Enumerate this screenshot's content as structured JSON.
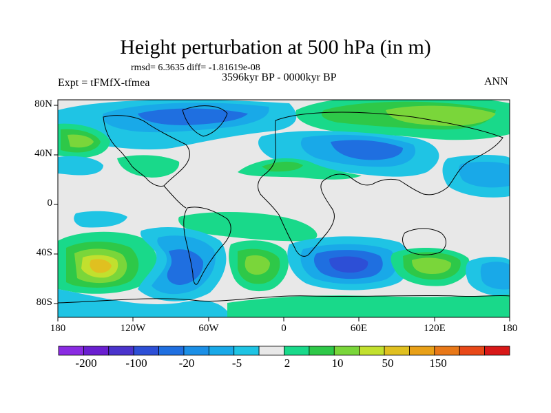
{
  "title": "Height perturbation at 500 hPa (in m)",
  "stats_line": "rmsd= 6.3635 diff= -1.81619e-08",
  "experiment_label": "Expt = tFMfX-tfmea",
  "period_label": "3596kyr BP - 0000kyr BP",
  "season_label": "ANN",
  "lat_ticks": [
    "80N",
    "40N",
    "0",
    "40S",
    "80S"
  ],
  "lon_ticks": [
    "180",
    "120W",
    "60W",
    "0",
    "60E",
    "120E",
    "180"
  ],
  "colorbar": {
    "labels": [
      "-200",
      "-100",
      "-20",
      "-5",
      "2",
      "10",
      "50",
      "150"
    ],
    "colors": [
      "#8a2be2",
      "#6a1fd0",
      "#4a33cc",
      "#2d4fd6",
      "#1f6fe0",
      "#1b8fe6",
      "#19a9e8",
      "#1fc4e4",
      "#e8e8e8",
      "#19d98a",
      "#2ec848",
      "#7ad63a",
      "#c2e02e",
      "#e0c020",
      "#e8a018",
      "#e87818",
      "#e84818",
      "#d81818"
    ]
  },
  "field_colors": {
    "background": "#e8e8e8",
    "neg_weak": "#1fc4e4",
    "neg_mid": "#19a9e8",
    "neg_strong": "#1f6fe0",
    "neg_core": "#2d4fd6",
    "pos_weak": "#19d98a",
    "pos_mid": "#2ec848",
    "pos_strong": "#7ad63a",
    "pos_core": "#c2e02e",
    "pos_peak": "#e0c020",
    "coast": "#000000"
  }
}
